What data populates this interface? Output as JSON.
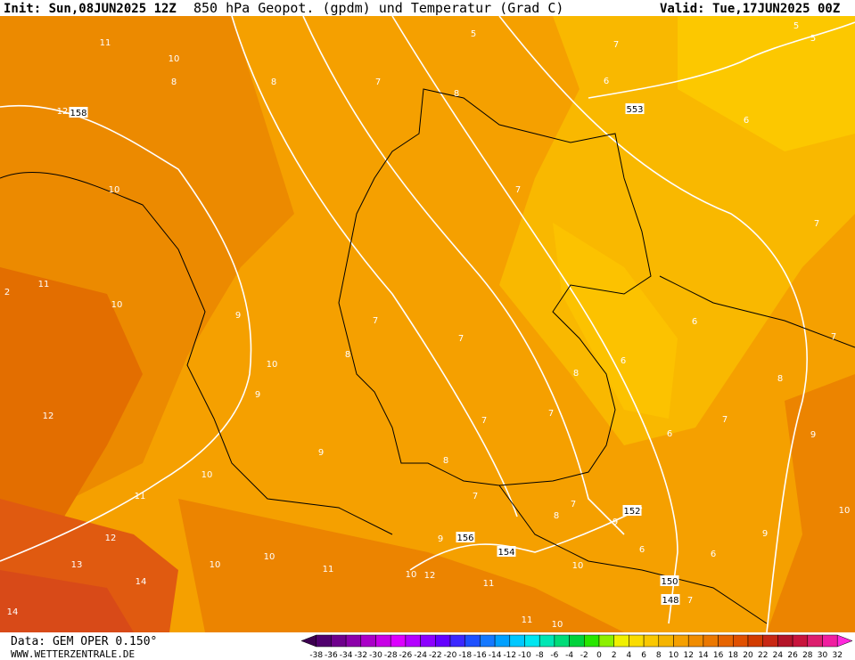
{
  "header": {
    "init": "Init: Sun,08JUN2025 12Z",
    "title": "850 hPa Geopot. (gpdm) und Temperatur (Grad C)",
    "valid": "Valid: Tue,17JUN2025 00Z"
  },
  "map": {
    "contour_labels": [
      "11",
      "10",
      "8",
      "8",
      "7",
      "5",
      "7",
      "5",
      "5",
      "8",
      "6",
      "553",
      "6",
      "12",
      "158",
      "10",
      "7",
      "7",
      "2",
      "11",
      "10",
      "9",
      "7",
      "7",
      "6",
      "8",
      "10",
      "6",
      "7",
      "9",
      "8",
      "8",
      "12",
      "7",
      "7",
      "7",
      "6",
      "9",
      "9",
      "8",
      "10",
      "11",
      "7",
      "7",
      "8",
      "152",
      "9",
      "10",
      "12",
      "9",
      "156",
      "9",
      "154",
      "6",
      "6",
      "10",
      "10",
      "13",
      "11",
      "10",
      "12",
      "10",
      "14",
      "11",
      "150",
      "14",
      "11",
      "10",
      "148",
      "7"
    ]
  },
  "footer": {
    "data": "Data: GEM OPER 0.150°",
    "site": "WWW.WETTERZENTRALE.DE"
  },
  "legend": {
    "labels": [
      "-38",
      "-36",
      "-34",
      "-32",
      "-30",
      "-28",
      "-26",
      "-24",
      "-22",
      "-20",
      "-18",
      "-16",
      "-14",
      "-12",
      "-10",
      "-8",
      "-6",
      "-4",
      "-2",
      "0",
      "2",
      "4",
      "6",
      "8",
      "10",
      "12",
      "14",
      "16",
      "18",
      "20",
      "22",
      "24",
      "26",
      "28",
      "30",
      "32"
    ],
    "colors": [
      "#3c0050",
      "#50006e",
      "#6e008c",
      "#8c00aa",
      "#aa00c8",
      "#c800e6",
      "#dc00ff",
      "#b400ff",
      "#8c00ff",
      "#6400ff",
      "#3c28ff",
      "#1e50ff",
      "#1478ff",
      "#00a0ff",
      "#00c8ff",
      "#00e6f0",
      "#00e6b4",
      "#00dc78",
      "#00d23c",
      "#28e600",
      "#8cf000",
      "#f0f000",
      "#fadc00",
      "#fac800",
      "#f5b400",
      "#f5a000",
      "#f08c00",
      "#eb7800",
      "#e66400",
      "#e05000",
      "#d23c00",
      "#c82814",
      "#b41428",
      "#c8143c",
      "#dc1e6e",
      "#f01ea0",
      "#ff28dc"
    ]
  }
}
